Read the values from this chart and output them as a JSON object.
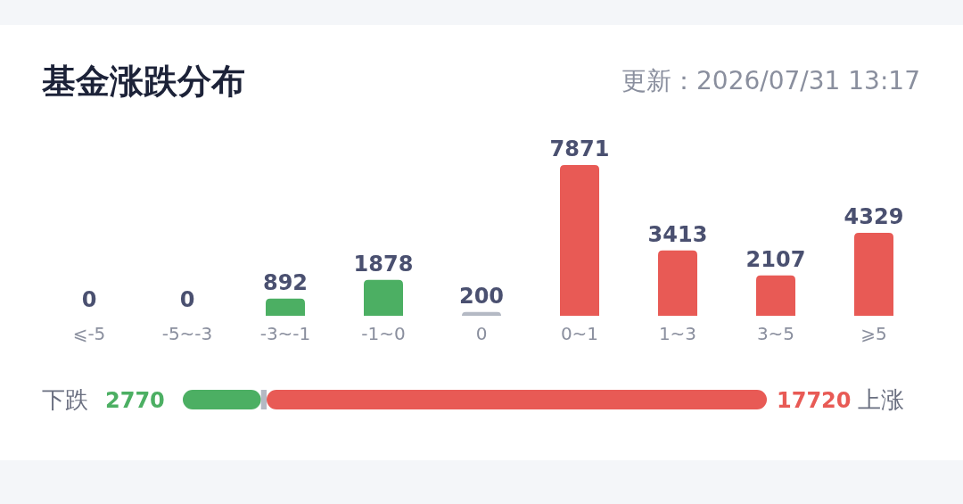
{
  "chart_data": [
    {
      "type": "bar",
      "title": "基金涨跌分布",
      "subtitle": "更新：2026/07/31 13:17",
      "categories": [
        "⩽-5",
        "-5~-3",
        "-3~-1",
        "-1~0",
        "0",
        "0~1",
        "1~3",
        "3~5",
        "⩾5"
      ],
      "values": [
        0,
        0,
        892,
        1878,
        200,
        7871,
        3413,
        2107,
        4329
      ],
      "colors": [
        "#4caf63",
        "#4caf63",
        "#4caf63",
        "#4caf63",
        "#b4b9c4",
        "#e85a55",
        "#e85a55",
        "#e85a55",
        "#e85a55"
      ],
      "data_labels": true,
      "tick_labels": "x"
    },
    {
      "type": "bar",
      "orientation": "horizontal",
      "stacked": true,
      "categories": [
        null
      ],
      "xlim": [
        0,
        20690
      ],
      "annotations": [
        "下跌",
        "上涨"
      ],
      "series": [
        {
          "color": "#4caf63",
          "values": [
            2770
          ],
          "value_labels": [
            "2770"
          ]
        },
        {
          "color": "#b4b9c4",
          "values": [
            200
          ],
          "value_labels": [
            null
          ]
        },
        {
          "color": "#e85a55",
          "values": [
            17720
          ],
          "value_labels": [
            "17720"
          ]
        }
      ]
    }
  ]
}
